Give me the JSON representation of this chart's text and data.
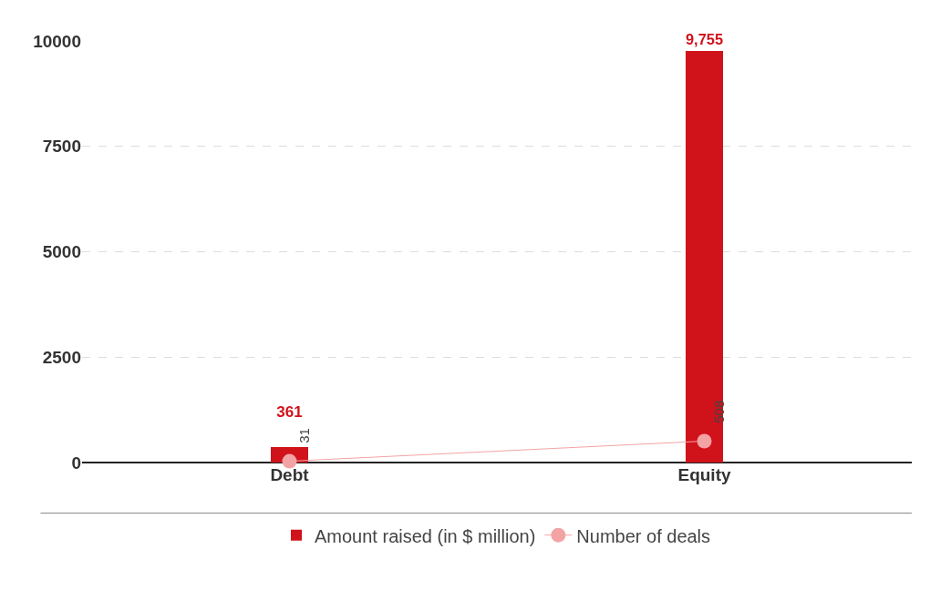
{
  "chart_data": {
    "type": "bar",
    "categories": [
      "Debt",
      "Equity"
    ],
    "series": [
      {
        "name": "Amount raised (in $ million)",
        "color": "#d0121b",
        "values": [
          361,
          9755
        ],
        "value_labels": [
          "361",
          "9,755"
        ]
      },
      {
        "name": "Number of deals",
        "type": "line",
        "color": "#f4a3a5",
        "values": [
          31,
          508
        ],
        "value_labels": [
          "31",
          "508"
        ],
        "marker": "circle"
      }
    ],
    "ylim": [
      0,
      10000
    ],
    "yticks": [
      0,
      2500,
      5000,
      7500,
      10000
    ],
    "grid": "y",
    "legend": "bottom"
  }
}
